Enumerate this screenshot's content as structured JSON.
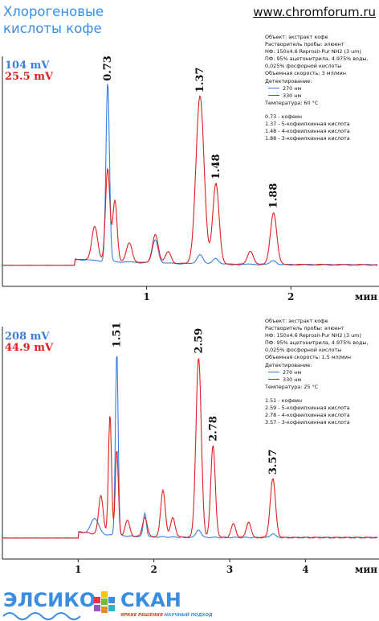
{
  "header": {
    "title_line1": "Хлорогеновые",
    "title_line2": "кислоты кофе",
    "website": "www.chromforum.ru"
  },
  "colors": {
    "blue_trace": "#3a7fdc",
    "red_trace": "#e02020",
    "brand_blue": "#3a8ee0"
  },
  "chart_data": [
    {
      "type": "line",
      "xunit": "мин",
      "xlim": [
        0,
        2.6
      ],
      "xticks": [
        "1",
        "2"
      ],
      "scale_labels": [
        "104 mV",
        "25.5 mV"
      ],
      "peak_labels": [
        "0.73",
        "1.37",
        "1.48",
        "1.88"
      ],
      "series": [
        {
          "color": "blue",
          "peaks": [
            {
              "x": 0.73,
              "h": 0.93,
              "w": 0.012
            },
            {
              "x": 1.06,
              "h": 0.12,
              "w": 0.02
            },
            {
              "x": 1.37,
              "h": 0.05,
              "w": 0.02
            },
            {
              "x": 1.48,
              "h": 0.03,
              "w": 0.02
            },
            {
              "x": 1.88,
              "h": 0.02,
              "w": 0.02
            }
          ]
        },
        {
          "color": "red",
          "peaks": [
            {
              "x": 0.64,
              "h": 0.18,
              "w": 0.02
            },
            {
              "x": 0.73,
              "h": 0.48,
              "w": 0.015
            },
            {
              "x": 0.78,
              "h": 0.32,
              "w": 0.015
            },
            {
              "x": 0.88,
              "h": 0.1,
              "w": 0.02
            },
            {
              "x": 1.06,
              "h": 0.15,
              "w": 0.02
            },
            {
              "x": 1.15,
              "h": 0.06,
              "w": 0.02
            },
            {
              "x": 1.37,
              "h": 0.87,
              "w": 0.028
            },
            {
              "x": 1.48,
              "h": 0.42,
              "w": 0.022
            },
            {
              "x": 1.72,
              "h": 0.07,
              "w": 0.02
            },
            {
              "x": 1.88,
              "h": 0.27,
              "w": 0.022
            }
          ]
        }
      ],
      "method": {
        "object": "Объект: экстракт кофе",
        "solvent": "Растворитель пробы: элюент",
        "column": "НФ: 150x4.6 Reprosil-Pur NH2  (3 um)",
        "mobile_phase_1": "ПФ: 95% ацетонитрила, 4.975% воды,",
        "mobile_phase_2": "0,025% фосфорной кислоты",
        "flow": "Объемная скорость: 3 мл/мин",
        "detection": "Детектирование:",
        "det_1": "270 нм",
        "det_2": "330 нм",
        "temperature": "Температура: 60 °С",
        "peaks": [
          "0.73 - кофеин",
          "1.37 - 5-кофеилхинная кислота",
          "1.48 - 4-кофеилхинная кислота",
          "1.88 - 3-кофеилхинная кислота"
        ]
      }
    },
    {
      "type": "line",
      "xunit": "мин",
      "xlim": [
        0,
        4.95
      ],
      "xticks": [
        "1",
        "2",
        "3",
        "4"
      ],
      "scale_labels": [
        "208 mV",
        "44.9 mV"
      ],
      "peak_labels": [
        "1.51",
        "2.59",
        "2.78",
        "3.57"
      ],
      "series": [
        {
          "color": "blue",
          "peaks": [
            {
              "x": 1.22,
              "h": 0.08,
              "w": 0.05
            },
            {
              "x": 1.51,
              "h": 0.95,
              "w": 0.018
            },
            {
              "x": 1.88,
              "h": 0.12,
              "w": 0.02
            },
            {
              "x": 2.59,
              "h": 0.04,
              "w": 0.03
            },
            {
              "x": 3.57,
              "h": 0.02,
              "w": 0.03
            }
          ]
        },
        {
          "color": "red",
          "peaks": [
            {
              "x": 1.3,
              "h": 0.2,
              "w": 0.03
            },
            {
              "x": 1.42,
              "h": 0.62,
              "w": 0.02
            },
            {
              "x": 1.51,
              "h": 0.44,
              "w": 0.02
            },
            {
              "x": 1.65,
              "h": 0.08,
              "w": 0.03
            },
            {
              "x": 1.88,
              "h": 0.1,
              "w": 0.03
            },
            {
              "x": 2.12,
              "h": 0.24,
              "w": 0.03
            },
            {
              "x": 2.25,
              "h": 0.1,
              "w": 0.03
            },
            {
              "x": 2.59,
              "h": 0.92,
              "w": 0.035
            },
            {
              "x": 2.78,
              "h": 0.47,
              "w": 0.03
            },
            {
              "x": 3.05,
              "h": 0.07,
              "w": 0.03
            },
            {
              "x": 3.25,
              "h": 0.08,
              "w": 0.03
            },
            {
              "x": 3.57,
              "h": 0.3,
              "w": 0.035
            }
          ]
        }
      ],
      "method": {
        "object": "Объект: экстракт кофе",
        "solvent": "Растворитель пробы: элюент",
        "column": "НФ: 150x4.6 Reprosil-Pur NH2  (3 um)",
        "mobile_phase_1": "ПФ: 95% ацетонитрила, 4.975% воды,",
        "mobile_phase_2": "0,025% фосфорной кислоты",
        "flow": "Объемная скорость: 1.5 мл/мин",
        "detection": "Детектирование:",
        "det_1": "270 нм",
        "det_2": "330 нм",
        "temperature": "Температура: 25 °С",
        "peaks": [
          "1.51 - кофеин",
          "2.59 - 5-кофеилхинная кислота",
          "2.78 - 4-кофеилхинная кислота",
          "3.57 - 3-кофеилхинная кислота"
        ]
      }
    }
  ],
  "footer": {
    "logo_left": "ЭЛСИКО",
    "logo_right": "СКАН",
    "slogan_red": "ЯРКИЕ РЕШЕНИЯ",
    "slogan_blue": "НАУЧНЫЙ ПОДХОД"
  }
}
